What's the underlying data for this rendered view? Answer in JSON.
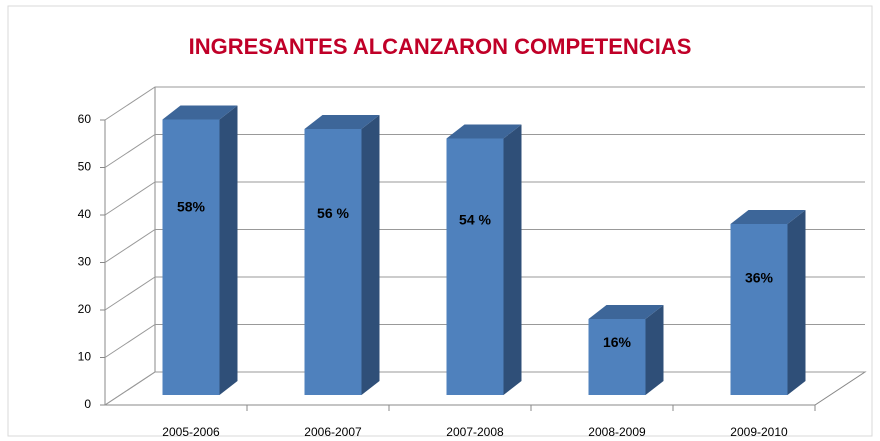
{
  "chart_data": {
    "type": "bar3d",
    "title": "INGRESANTES  ALCANZARON COMPETENCIAS",
    "categories": [
      "2005-2006",
      "2006-2007",
      "2007-2008",
      "2008-2009",
      "2009-2010"
    ],
    "values": [
      58,
      56,
      54,
      16,
      36
    ],
    "value_labels": [
      "58%",
      "56 %",
      "54 %",
      "16%",
      "36%"
    ],
    "color": "#4f81bd",
    "ylim": [
      0,
      60
    ],
    "yticks": [
      0,
      10,
      20,
      30,
      40,
      50,
      60
    ],
    "grid": true
  }
}
